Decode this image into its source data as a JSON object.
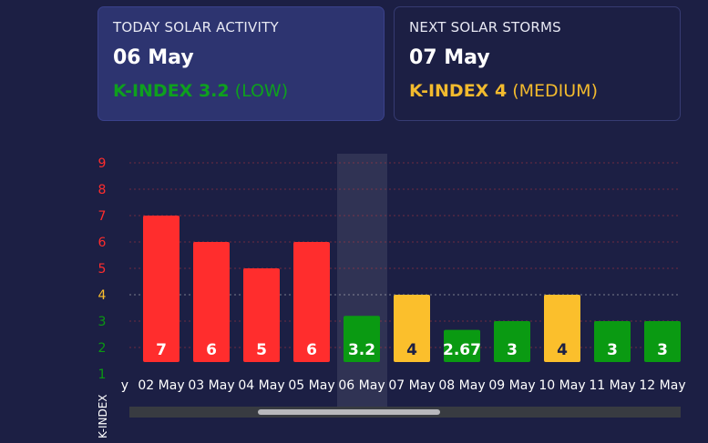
{
  "today": {
    "title": "TODAY SOLAR ACTIVITY",
    "date": "06 May",
    "k_label": "K-INDEX 3.2",
    "level": "(LOW)"
  },
  "next": {
    "title": "NEXT SOLAR STORMS",
    "date": "07 May",
    "k_label": "K-INDEX 4",
    "level": "(MEDIUM)"
  },
  "colors": {
    "high": "#ff2d2d",
    "medium": "#fbbf2c",
    "low": "#0a9a12",
    "background": "#1c1f44"
  },
  "chart_data": {
    "type": "bar",
    "ylabel": "K-INDEX",
    "ylim": [
      1,
      9
    ],
    "yticks": [
      {
        "label": "9",
        "value": 9,
        "level": "high"
      },
      {
        "label": "8",
        "value": 8,
        "level": "high"
      },
      {
        "label": "7",
        "value": 7,
        "level": "high"
      },
      {
        "label": "6",
        "value": 6,
        "level": "high"
      },
      {
        "label": "5",
        "value": 5,
        "level": "high"
      },
      {
        "label": "4",
        "value": 4,
        "level": "medium"
      },
      {
        "label": "3",
        "value": 3,
        "level": "low"
      },
      {
        "label": "2",
        "value": 2,
        "level": "low"
      },
      {
        "label": "1",
        "value": 1,
        "level": "low"
      }
    ],
    "clipped_left_label": "y",
    "categories": [
      "02 May",
      "03 May",
      "04 May",
      "05 May",
      "06 May",
      "07 May",
      "08 May",
      "09 May",
      "10 May",
      "11 May",
      "12 May"
    ],
    "values": [
      7,
      6,
      5,
      6,
      3.2,
      4,
      2.67,
      3,
      4,
      3,
      3
    ],
    "labels": [
      "7",
      "6",
      "5",
      "6",
      "3.2",
      "4",
      "2.67",
      "3",
      "4",
      "3",
      "3"
    ],
    "levels": [
      "high",
      "high",
      "high",
      "high",
      "low",
      "medium",
      "low",
      "low",
      "medium",
      "low",
      "low"
    ],
    "highlighted": "06 May",
    "grid": true
  }
}
